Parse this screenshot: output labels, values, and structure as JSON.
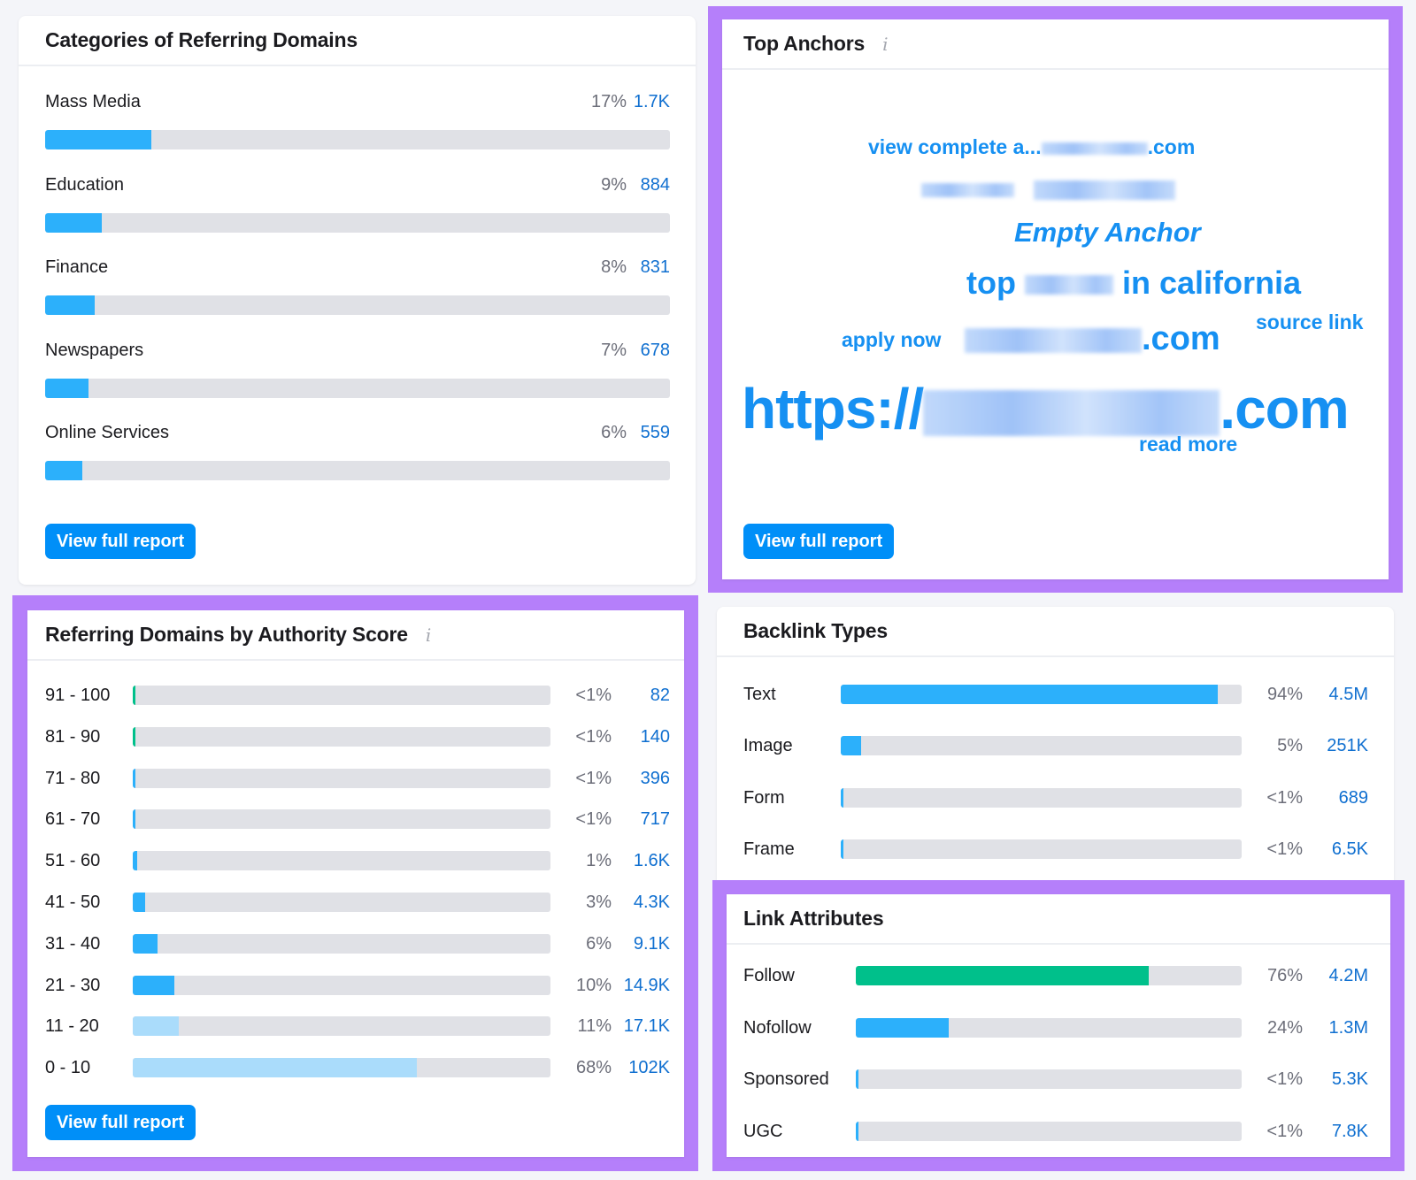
{
  "colors": {
    "highlight": "#b57ffa",
    "bar_blue": "#2cb0fb",
    "bar_light_blue": "#aadcfb",
    "bar_green": "#00c08b",
    "track": "#e0e1e6",
    "value_blue": "#0f6fd0",
    "button": "#008ff8"
  },
  "categories": {
    "title": "Categories of Referring Domains",
    "items": [
      {
        "label": "Mass Media",
        "pct": "17%",
        "value": "1.7K",
        "fill": 17
      },
      {
        "label": "Education",
        "pct": "9%",
        "value": "884",
        "fill": 9
      },
      {
        "label": "Finance",
        "pct": "8%",
        "value": "831",
        "fill": 8
      },
      {
        "label": "Newspapers",
        "pct": "7%",
        "value": "678",
        "fill": 7
      },
      {
        "label": "Online Services",
        "pct": "6%",
        "value": "559",
        "fill": 6
      }
    ],
    "button": "View full report"
  },
  "anchors": {
    "title": "Top Anchors",
    "info_icon": "i",
    "words": {
      "view_complete_prefix": "view complete a...",
      "view_complete_suffix": ".com",
      "empty_anchor": "Empty Anchor",
      "top": "top",
      "in_california": "in california",
      "apply_now": "apply now",
      "domain_suffix": ".com",
      "source_link": "source link",
      "https_prefix": "https://",
      "https_suffix": ".com",
      "read_more": "read more"
    },
    "button": "View full report"
  },
  "authority": {
    "title": "Referring Domains by Authority Score",
    "info_icon": "i",
    "items": [
      {
        "label": "91 - 100",
        "pct": "<1%",
        "value": "82",
        "fill": 0.4,
        "color": "green"
      },
      {
        "label": "81 - 90",
        "pct": "<1%",
        "value": "140",
        "fill": 0.4,
        "color": "green"
      },
      {
        "label": "71 - 80",
        "pct": "<1%",
        "value": "396",
        "fill": 0.4,
        "color": "blue"
      },
      {
        "label": "61 - 70",
        "pct": "<1%",
        "value": "717",
        "fill": 0.4,
        "color": "blue"
      },
      {
        "label": "51 - 60",
        "pct": "1%",
        "value": "1.6K",
        "fill": 1,
        "color": "blue"
      },
      {
        "label": "41 - 50",
        "pct": "3%",
        "value": "4.3K",
        "fill": 3,
        "color": "blue"
      },
      {
        "label": "31 - 40",
        "pct": "6%",
        "value": "9.1K",
        "fill": 6,
        "color": "blue"
      },
      {
        "label": "21 - 30",
        "pct": "10%",
        "value": "14.9K",
        "fill": 10,
        "color": "blue"
      },
      {
        "label": "11 - 20",
        "pct": "11%",
        "value": "17.1K",
        "fill": 11,
        "color": "light"
      },
      {
        "label": "0 - 10",
        "pct": "68%",
        "value": "102K",
        "fill": 68,
        "color": "light"
      }
    ],
    "button": "View full report"
  },
  "backlink_types": {
    "title": "Backlink Types",
    "items": [
      {
        "label": "Text",
        "pct": "94%",
        "value": "4.5M",
        "fill": 94,
        "color": "blue"
      },
      {
        "label": "Image",
        "pct": "5%",
        "value": "251K",
        "fill": 5,
        "color": "blue"
      },
      {
        "label": "Form",
        "pct": "<1%",
        "value": "689",
        "fill": 0.4,
        "color": "blue"
      },
      {
        "label": "Frame",
        "pct": "<1%",
        "value": "6.5K",
        "fill": 0.4,
        "color": "blue"
      }
    ]
  },
  "link_attributes": {
    "title": "Link Attributes",
    "items": [
      {
        "label": "Follow",
        "pct": "76%",
        "value": "4.2M",
        "fill": 76,
        "color": "green"
      },
      {
        "label": "Nofollow",
        "pct": "24%",
        "value": "1.3M",
        "fill": 24,
        "color": "blue"
      },
      {
        "label": "Sponsored",
        "pct": "<1%",
        "value": "5.3K",
        "fill": 0.4,
        "color": "blue"
      },
      {
        "label": "UGC",
        "pct": "<1%",
        "value": "7.8K",
        "fill": 0.4,
        "color": "blue"
      }
    ]
  }
}
